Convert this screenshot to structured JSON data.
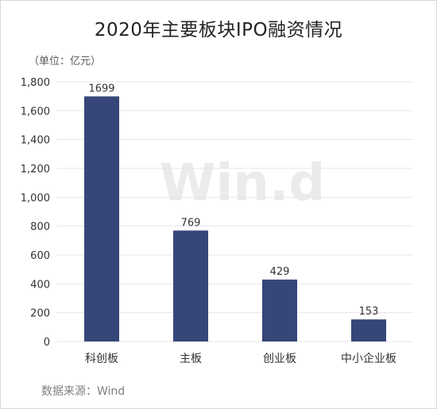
{
  "title": "2020年主要板块IPO融资情况",
  "unit_label": "（单位：亿元）",
  "source": "数据来源：Wind",
  "watermark": "Win.d",
  "colors": {
    "bar": "#364679",
    "grid": "#e6e6e6",
    "axis_text": "#333333",
    "label_text": "#333333",
    "watermark": "#ebebeb"
  },
  "chart_data": {
    "type": "bar",
    "categories": [
      "科创板",
      "主板",
      "创业板",
      "中小企业板"
    ],
    "values": [
      1699,
      769,
      429,
      153
    ],
    "ylim": [
      0,
      1800
    ],
    "yticks": [
      0,
      200,
      400,
      600,
      800,
      1000,
      1200,
      1400,
      1600,
      1800
    ],
    "ytick_labels": [
      "0",
      "200",
      "400",
      "600",
      "800",
      "1,000",
      "1,200",
      "1,400",
      "1,600",
      "1,800"
    ],
    "title": "2020年主要板块IPO融资情况",
    "xlabel": "",
    "ylabel": "",
    "grid": true,
    "data_labels": [
      "1699",
      "769",
      "429",
      "153"
    ]
  }
}
